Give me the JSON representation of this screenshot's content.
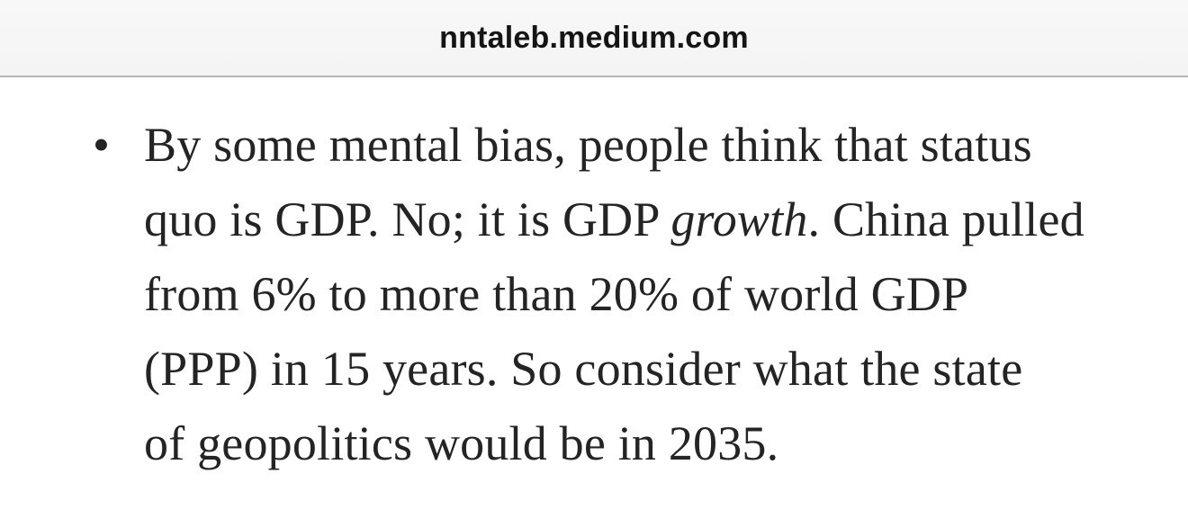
{
  "colors": {
    "bar_bg_top": "#f8f8f8",
    "bar_bg_bottom": "#f4f4f4",
    "bar_border": "#b6b6b6",
    "url_color": "#151515",
    "text_color": "#242424",
    "page_bg": "#ffffff"
  },
  "browser": {
    "url_bar": {
      "text": "nntaleb.medium.com"
    }
  },
  "content": {
    "bullet_item": {
      "marker": "•",
      "lines": [
        [
          {
            "t": "By some mental bias, people think that status",
            "i": false
          }
        ],
        [
          {
            "t": "quo is GDP. No; it is GDP ",
            "i": false
          },
          {
            "t": "growth",
            "i": true
          },
          {
            "t": ". China pulled",
            "i": false
          }
        ],
        [
          {
            "t": "from 6% to more than 20% of world GDP",
            "i": false
          }
        ],
        [
          {
            "t": "(PPP) in 15 years. So consider what the state",
            "i": false
          }
        ],
        [
          {
            "t": "of geopolitics would be in 2035.",
            "i": false
          }
        ]
      ],
      "full_text": "By some mental bias, people think that status quo is GDP. No; it is GDP growth. China pulled from 6% to more than 20% of world GDP (PPP) in 15 years. So consider what the state of geopolitics would be in 2035."
    }
  }
}
